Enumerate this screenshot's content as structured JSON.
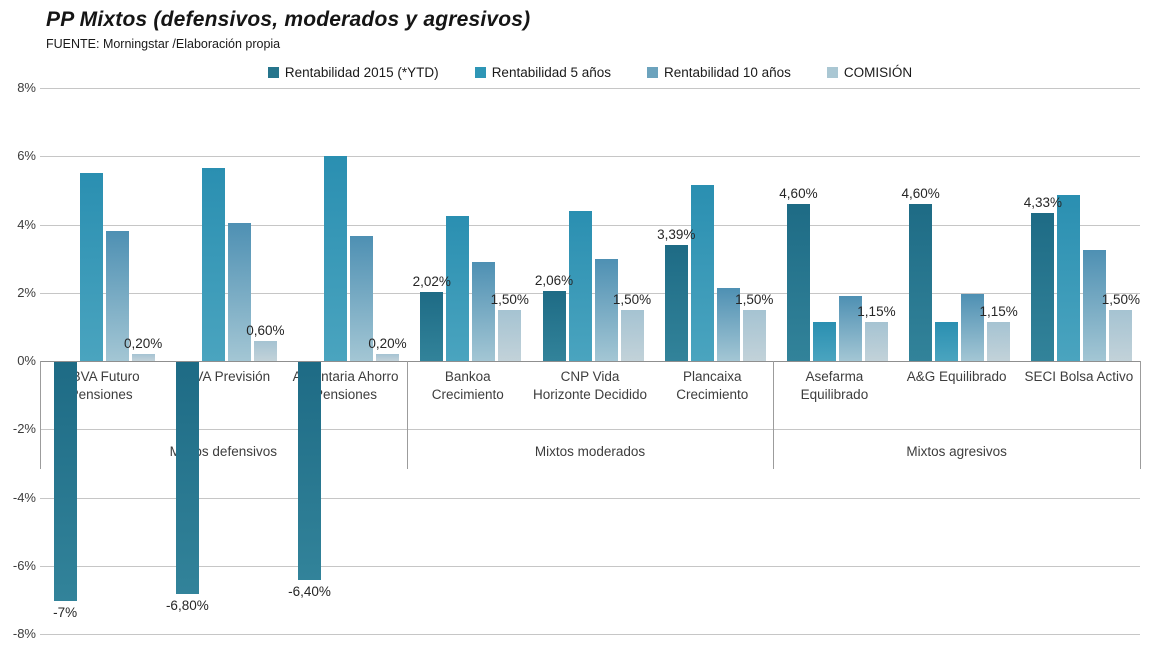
{
  "chart": {
    "title": "PP Mixtos (defensivos, moderados y agresivos)",
    "source": "FUENTE: Morningstar /Elaboración propia"
  },
  "chart_data": {
    "type": "bar",
    "title": "PP Mixtos (defensivos, moderados y agresivos)",
    "source": "FUENTE: Morningstar /Elaboración propia",
    "legend_position": "top",
    "grid": true,
    "y_axis": {
      "min": -8,
      "max": 8,
      "step": 2,
      "tick_labels": [
        "8%",
        "6%",
        "4%",
        "2%",
        "0%",
        "-2%",
        "-4%",
        "-6%",
        "-8%"
      ]
    },
    "categories": [
      "BBVA Futuro Pensiones",
      "BBVA Previsión",
      "Argentaria Ahorro Pensiones",
      "Bankoa Crecimiento",
      "CNP Vida Horizonte Decidido",
      "Plancaixa Crecimiento",
      "Asefarma Equilibrado",
      "A&G Equilibrado",
      "SECI Bolsa Activo"
    ],
    "category_groups": [
      {
        "label": "Mixtos defensivos",
        "span": 3
      },
      {
        "label": "Mixtos moderados",
        "span": 3
      },
      {
        "label": "Mixtos agresivos",
        "span": 3
      }
    ],
    "series": [
      {
        "name": "Rentabilidad 2015 (*YTD)",
        "color": "#26758c",
        "gradient": [
          "#1e6b85",
          "#32839a"
        ],
        "values": [
          -7,
          -6.8,
          -6.4,
          2.02,
          2.06,
          3.39,
          4.6,
          4.6,
          4.33
        ],
        "labels": [
          "-7%",
          "-6,80%",
          "-6,40%",
          "2,02%",
          "2,06%",
          "3,39%",
          "4,60%",
          "4,60%",
          "4,33%"
        ]
      },
      {
        "name": "Rentabilidad 5 años",
        "color": "#2e96b6",
        "gradient": [
          "#2a8fb1",
          "#4aa4bf"
        ],
        "values": [
          5.5,
          5.65,
          6.0,
          4.25,
          4.4,
          5.15,
          1.15,
          1.15,
          4.85
        ],
        "labels": null
      },
      {
        "name": "Rentabilidad 10 años",
        "color": "#6ca3bd",
        "gradient": [
          "#4e90b3",
          "#a3c6d4"
        ],
        "values": [
          3.8,
          4.05,
          3.65,
          2.9,
          3.0,
          2.15,
          1.9,
          1.95,
          3.25
        ],
        "labels": null
      },
      {
        "name": "COMISIÓN",
        "color": "#aac7d3",
        "gradient": [
          "#a5c3d2",
          "#c2d2d9"
        ],
        "values": [
          0.2,
          0.6,
          0.2,
          1.5,
          1.5,
          1.5,
          1.15,
          1.15,
          1.5
        ],
        "labels": [
          "0,20%",
          "0,60%",
          "0,20%",
          "1,50%",
          "1,50%",
          "1,50%",
          "1,15%",
          "1,15%",
          "1,50%"
        ]
      }
    ]
  }
}
